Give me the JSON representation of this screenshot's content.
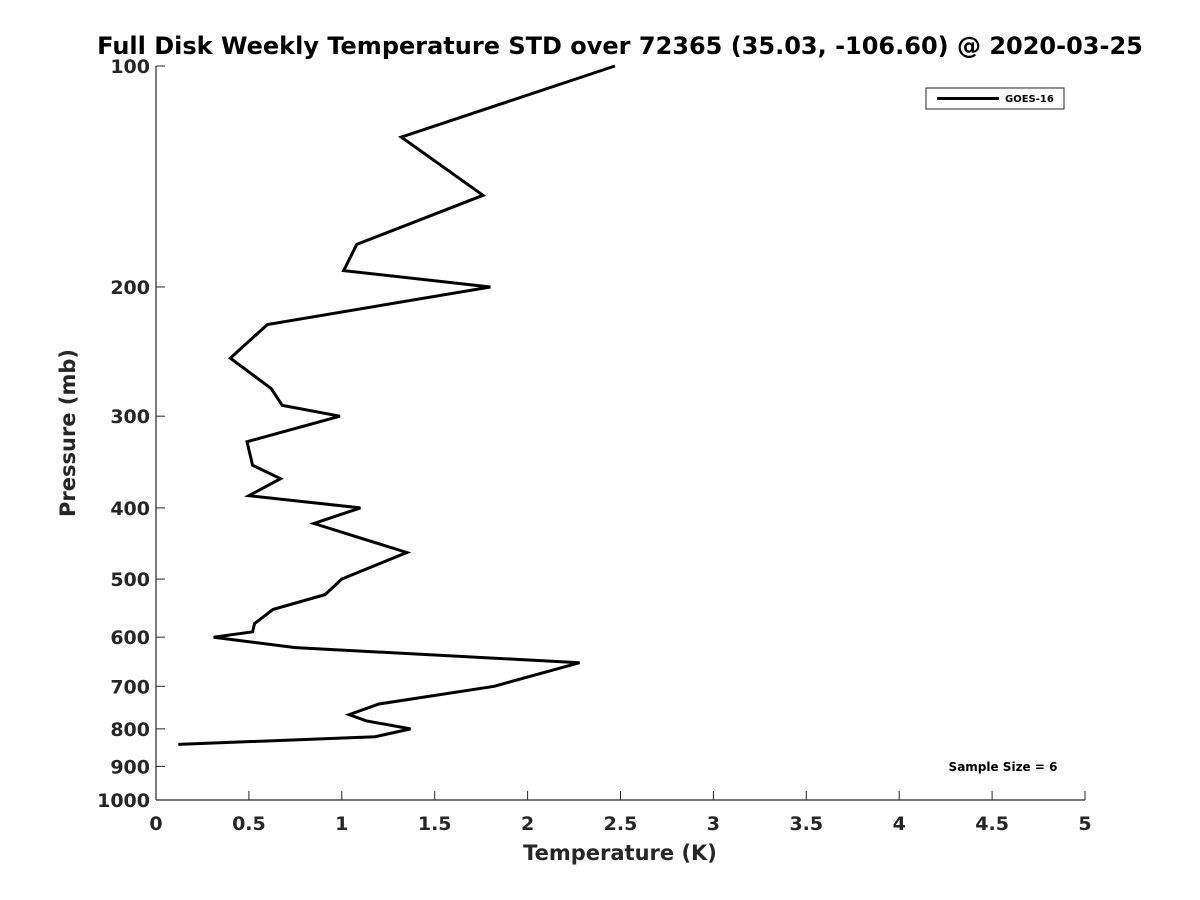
{
  "chart_data": {
    "type": "line",
    "title": "Full Disk Weekly Temperature STD over 72365 (35.03, -106.60) @ 2020-03-25",
    "xlabel": "Temperature (K)",
    "ylabel": "Pressure (mb)",
    "xlim": [
      0,
      5
    ],
    "ylim": [
      100,
      1000
    ],
    "y_scale": "log",
    "y_reversed": true,
    "grid": false,
    "legend_position": "top-right",
    "x_ticks": [
      "0",
      "0.5",
      "1",
      "1.5",
      "2",
      "2.5",
      "3",
      "3.5",
      "4",
      "4.5",
      "5"
    ],
    "y_ticks": [
      "100",
      "200",
      "300",
      "400",
      "500",
      "600",
      "700",
      "800",
      "900",
      "1000"
    ],
    "annotation": "Sample Size = 6",
    "colors": {
      "series": "#000000",
      "axes": "#262626"
    },
    "series": [
      {
        "name": "GOES-16",
        "points": [
          {
            "x": 2.47,
            "p": 100
          },
          {
            "x": 1.32,
            "p": 125
          },
          {
            "x": 1.76,
            "p": 150
          },
          {
            "x": 1.08,
            "p": 175
          },
          {
            "x": 1.01,
            "p": 190
          },
          {
            "x": 1.8,
            "p": 200
          },
          {
            "x": 0.6,
            "p": 225
          },
          {
            "x": 0.4,
            "p": 250
          },
          {
            "x": 0.62,
            "p": 275
          },
          {
            "x": 0.68,
            "p": 290
          },
          {
            "x": 0.99,
            "p": 300
          },
          {
            "x": 0.49,
            "p": 325
          },
          {
            "x": 0.52,
            "p": 350
          },
          {
            "x": 0.67,
            "p": 365
          },
          {
            "x": 0.5,
            "p": 385
          },
          {
            "x": 1.1,
            "p": 400
          },
          {
            "x": 0.85,
            "p": 420
          },
          {
            "x": 1.35,
            "p": 460
          },
          {
            "x": 1.0,
            "p": 500
          },
          {
            "x": 0.91,
            "p": 525
          },
          {
            "x": 0.63,
            "p": 550
          },
          {
            "x": 0.53,
            "p": 575
          },
          {
            "x": 0.52,
            "p": 590
          },
          {
            "x": 0.31,
            "p": 600
          },
          {
            "x": 0.75,
            "p": 620
          },
          {
            "x": 2.28,
            "p": 650
          },
          {
            "x": 1.82,
            "p": 700
          },
          {
            "x": 1.2,
            "p": 740
          },
          {
            "x": 1.04,
            "p": 765
          },
          {
            "x": 1.13,
            "p": 780
          },
          {
            "x": 1.37,
            "p": 800
          },
          {
            "x": 1.18,
            "p": 820
          },
          {
            "x": 0.12,
            "p": 840
          }
        ]
      }
    ]
  }
}
